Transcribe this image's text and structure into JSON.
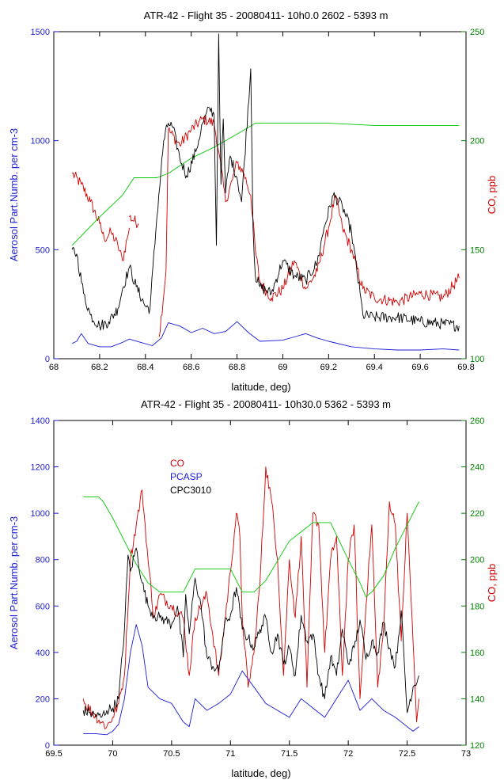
{
  "chart_data": [
    {
      "type": "line",
      "title": "ATR-42 - Flight 35 - 20080411- 10h0.0  2602 - 5393 m",
      "xlabel": "latitude, deg)",
      "ylabel": "Aerosol Part.Numb. per cm-3",
      "y2label": "CO, ppb",
      "xlim": [
        68,
        69.8
      ],
      "ylim": [
        0,
        1500
      ],
      "y2lim": [
        100,
        250
      ],
      "xticks": [
        "68",
        "68.2",
        "68.4",
        "68.6",
        "68.8",
        "69",
        "69.2",
        "69.4",
        "69.6",
        "69.8"
      ],
      "yticks": [
        "0",
        "500",
        "1000",
        "1500"
      ],
      "y2ticks": [
        "100",
        "150",
        "200",
        "250"
      ],
      "legend": [],
      "series": [
        {
          "name": "",
          "axis": "right",
          "color": "#d00000",
          "style": "noisy",
          "x": [
            68.08,
            68.12,
            68.16,
            68.2,
            68.22,
            68.25,
            68.28,
            68.3,
            68.32,
            68.33
          ],
          "y": [
            185,
            180,
            172,
            162,
            155,
            158,
            152,
            145,
            155,
            160
          ]
        },
        {
          "name": "",
          "axis": "right",
          "color": "#d00000",
          "style": "noisy",
          "x": [
            68.33,
            68.37
          ],
          "y": [
            165,
            162
          ]
        },
        {
          "name": "",
          "axis": "right",
          "color": "#d00000",
          "style": "noisy",
          "x": [
            68.46,
            68.49,
            68.5,
            68.55,
            68.6,
            68.65,
            68.7,
            68.72,
            68.75,
            68.78,
            68.8,
            68.83,
            68.86,
            68.88,
            68.9,
            68.95,
            69.0,
            69.05,
            69.1,
            69.15,
            69.2,
            69.23,
            69.26,
            69.3,
            69.35,
            69.4,
            69.5,
            69.6,
            69.7,
            69.77
          ],
          "y": [
            110,
            140,
            205,
            198,
            205,
            210,
            208,
            195,
            172,
            182,
            190,
            185,
            175,
            150,
            135,
            128,
            132,
            145,
            132,
            140,
            160,
            175,
            160,
            150,
            132,
            128,
            126,
            130,
            128,
            137
          ]
        },
        {
          "name": "",
          "axis": "right",
          "color": "#00c800",
          "style": "smooth",
          "x": [
            68.08,
            68.2,
            68.3,
            68.35,
            68.45,
            68.5,
            68.6,
            68.7,
            68.8,
            68.88,
            69.0,
            69.2,
            69.4,
            69.6,
            69.77
          ],
          "y": [
            152,
            165,
            175,
            183,
            183,
            185,
            192,
            197,
            203,
            208,
            208,
            208,
            207,
            207,
            207
          ]
        },
        {
          "name": "",
          "axis": "left",
          "color": "#000000",
          "style": "noisy",
          "x": [
            68.08,
            68.1,
            68.13,
            68.16,
            68.2,
            68.24,
            68.28,
            68.3,
            68.33,
            68.36,
            68.4,
            68.42,
            68.45,
            68.48,
            68.5,
            68.52,
            68.55,
            68.58,
            68.62,
            68.65,
            68.68,
            68.7,
            68.71,
            68.72,
            68.73,
            68.74,
            68.75,
            68.77,
            68.8,
            68.82,
            68.86,
            68.87,
            68.88,
            68.9,
            68.95,
            69.0,
            69.05,
            69.1,
            69.15,
            69.18,
            69.22,
            69.26,
            69.3,
            69.35,
            69.4,
            69.5,
            69.6,
            69.7,
            69.77
          ],
          "y": [
            500,
            480,
            300,
            200,
            150,
            170,
            230,
            320,
            420,
            330,
            240,
            230,
            650,
            1000,
            1080,
            1060,
            920,
            840,
            950,
            1080,
            1150,
            1120,
            520,
            1490,
            800,
            1100,
            760,
            930,
            830,
            720,
            1330,
            600,
            380,
            330,
            300,
            450,
            380,
            360,
            440,
            600,
            750,
            700,
            580,
            200,
            190,
            190,
            170,
            160,
            150
          ]
        },
        {
          "name": "",
          "axis": "left",
          "color": "#1a1ad8",
          "style": "smooth",
          "x": [
            68.08,
            68.1,
            68.12,
            68.15,
            68.2,
            68.25,
            68.3,
            68.33,
            68.38,
            68.43,
            68.47,
            68.5,
            68.55,
            68.6,
            68.65,
            68.7,
            68.75,
            68.8,
            68.85,
            68.9,
            69.0,
            69.05,
            69.1,
            69.15,
            69.2,
            69.3,
            69.4,
            69.5,
            69.6,
            69.7,
            69.77
          ],
          "y": [
            70,
            80,
            115,
            70,
            55,
            55,
            75,
            90,
            75,
            60,
            95,
            165,
            150,
            120,
            140,
            115,
            125,
            170,
            120,
            80,
            85,
            100,
            115,
            95,
            80,
            55,
            45,
            40,
            40,
            45,
            40
          ]
        }
      ]
    },
    {
      "type": "line",
      "title": "ATR-42 - Flight 35 - 20080411- 10h30.0  5362 - 5393 m",
      "xlabel": "latitude, deg)",
      "ylabel": "Aerosol Part.Numb. per cm-3",
      "y2label": "CO, ppb",
      "xlim": [
        69.5,
        73
      ],
      "ylim": [
        0,
        1400
      ],
      "y2lim": [
        120,
        260
      ],
      "xticks": [
        "69.5",
        "70",
        "70.5",
        "71",
        "71.5",
        "72",
        "72.5",
        "73"
      ],
      "yticks": [
        "0",
        "200",
        "400",
        "600",
        "800",
        "1000",
        "1200",
        "1400"
      ],
      "y2ticks": [
        "120",
        "140",
        "160",
        "180",
        "200",
        "220",
        "240",
        "260"
      ],
      "legend": [
        {
          "label": "CO",
          "color": "#d00000"
        },
        {
          "label": "PCASP",
          "color": "#1a1ad8"
        },
        {
          "label": "CPC3010",
          "color": "#000000"
        }
      ],
      "series": [
        {
          "name": "CO",
          "axis": "right",
          "color": "#d00000",
          "style": "noisy",
          "x": [
            69.75,
            69.76,
            69.9,
            69.95,
            70.0,
            70.05,
            70.1,
            70.15,
            70.2,
            70.25,
            70.3,
            70.35,
            70.4,
            70.5,
            70.6,
            70.65,
            70.7,
            70.8,
            70.9,
            71.0,
            71.05,
            71.08,
            71.1,
            71.15,
            71.2,
            71.25,
            71.3,
            71.35,
            71.4,
            71.45,
            71.5,
            71.55,
            71.6,
            71.65,
            71.7,
            71.75,
            71.8,
            71.85,
            71.9,
            71.95,
            72.0,
            72.05,
            72.1,
            72.15,
            72.2,
            72.25,
            72.3,
            72.35,
            72.4,
            72.45,
            72.5,
            72.55,
            72.58,
            72.6
          ],
          "y": [
            140,
            138,
            130,
            128,
            132,
            138,
            150,
            200,
            215,
            230,
            200,
            175,
            185,
            180,
            175,
            150,
            175,
            185,
            150,
            195,
            220,
            210,
            175,
            145,
            160,
            190,
            240,
            225,
            200,
            150,
            200,
            175,
            210,
            145,
            220,
            215,
            160,
            200,
            210,
            150,
            200,
            215,
            140,
            180,
            215,
            145,
            170,
            225,
            215,
            165,
            220,
            165,
            130,
            140
          ]
        },
        {
          "name": "",
          "axis": "right",
          "color": "#00c800",
          "style": "smooth",
          "x": [
            69.75,
            69.88,
            69.92,
            70.0,
            70.1,
            70.2,
            70.3,
            70.4,
            70.45,
            70.6,
            70.7,
            71.0,
            71.1,
            71.2,
            71.3,
            71.5,
            71.7,
            71.85,
            72.0,
            72.1,
            72.15,
            72.2,
            72.3,
            72.4,
            72.5,
            72.6
          ],
          "y": [
            227,
            227,
            225,
            218,
            208,
            198,
            190,
            186,
            186,
            186,
            196,
            196,
            186,
            186,
            191,
            208,
            216,
            216,
            200,
            190,
            184,
            186,
            193,
            205,
            215,
            225
          ]
        },
        {
          "name": "CPC3010",
          "axis": "left",
          "color": "#000000",
          "style": "noisy",
          "x": [
            69.75,
            69.8,
            69.9,
            69.95,
            70.0,
            70.05,
            70.1,
            70.13,
            70.15,
            70.2,
            70.25,
            70.3,
            70.35,
            70.4,
            70.45,
            70.5,
            70.55,
            70.6,
            70.62,
            70.65,
            70.7,
            70.75,
            70.8,
            70.85,
            70.9,
            70.95,
            71.0,
            71.05,
            71.1,
            71.15,
            71.2,
            71.25,
            71.3,
            71.35,
            71.4,
            71.45,
            71.5,
            71.55,
            71.6,
            71.65,
            71.7,
            71.75,
            71.8,
            71.85,
            71.9,
            71.95,
            72.0,
            72.05,
            72.1,
            72.15,
            72.2,
            72.25,
            72.3,
            72.35,
            72.4,
            72.45,
            72.5,
            72.55,
            72.6
          ],
          "y": [
            150,
            140,
            120,
            150,
            160,
            200,
            500,
            820,
            750,
            850,
            700,
            600,
            560,
            550,
            540,
            520,
            600,
            380,
            650,
            480,
            720,
            600,
            380,
            340,
            320,
            520,
            560,
            680,
            500,
            460,
            420,
            500,
            550,
            400,
            480,
            350,
            420,
            300,
            560,
            450,
            480,
            300,
            200,
            380,
            300,
            500,
            350,
            420,
            540,
            370,
            450,
            400,
            530,
            420,
            340,
            580,
            140,
            250,
            300
          ]
        },
        {
          "name": "PCASP",
          "axis": "left",
          "color": "#1a1ad8",
          "style": "smooth",
          "x": [
            69.75,
            69.85,
            69.95,
            70.0,
            70.05,
            70.1,
            70.15,
            70.2,
            70.25,
            70.3,
            70.4,
            70.5,
            70.6,
            70.65,
            70.7,
            70.8,
            70.9,
            71.0,
            71.1,
            71.2,
            71.3,
            71.4,
            71.5,
            71.6,
            71.7,
            71.8,
            71.9,
            72.0,
            72.1,
            72.2,
            72.3,
            72.4,
            72.5,
            72.55,
            72.6
          ],
          "y": [
            50,
            50,
            45,
            60,
            90,
            200,
            400,
            520,
            430,
            250,
            200,
            180,
            100,
            80,
            200,
            150,
            180,
            220,
            320,
            250,
            180,
            150,
            120,
            200,
            160,
            120,
            200,
            280,
            150,
            200,
            150,
            120,
            80,
            60,
            80
          ]
        }
      ]
    }
  ]
}
